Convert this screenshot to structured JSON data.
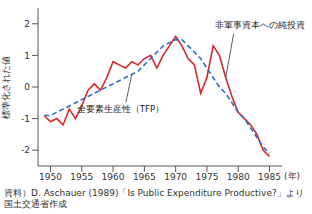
{
  "chart_data": {
    "type": "line",
    "y_label": "標準化された値",
    "x_label": "(年)",
    "source": "資料）D. Aschauer (1989)「Is Public Expenditure Productive?」より国土交通省作成",
    "x": [
      1949,
      1950,
      1951,
      1952,
      1953,
      1954,
      1955,
      1956,
      1957,
      1958,
      1959,
      1960,
      1961,
      1962,
      1963,
      1964,
      1965,
      1966,
      1967,
      1968,
      1969,
      1970,
      1971,
      1972,
      1973,
      1974,
      1975,
      1976,
      1977,
      1978,
      1979,
      1980,
      1981,
      1982,
      1983,
      1984,
      1985
    ],
    "series": [
      {
        "name": "非軍事資本への純投資",
        "color": "#d7262c",
        "line_style": "solid",
        "values": [
          -0.9,
          -1.1,
          -1.0,
          -1.2,
          -0.7,
          -1.0,
          -0.6,
          -0.1,
          0.1,
          -0.1,
          0.3,
          0.8,
          0.7,
          0.6,
          0.8,
          0.7,
          0.9,
          1.0,
          0.6,
          1.0,
          1.3,
          1.6,
          1.3,
          0.9,
          0.7,
          -0.2,
          0.3,
          1.3,
          1.0,
          0.3,
          -0.3,
          -0.8,
          -1.0,
          -1.2,
          -1.5,
          -2.0,
          -2.2
        ]
      },
      {
        "name": "全要素生産性（TFP）",
        "color": "#2f6db5",
        "line_style": "dashed",
        "values": [
          -0.9,
          -0.9,
          -0.8,
          -0.7,
          -0.6,
          -0.5,
          -0.4,
          -0.3,
          -0.2,
          -0.1,
          0.0,
          0.1,
          0.2,
          0.3,
          0.4,
          0.5,
          0.7,
          0.9,
          1.1,
          1.3,
          1.4,
          1.5,
          1.5,
          1.3,
          1.1,
          0.9,
          0.6,
          0.3,
          0.0,
          -0.2,
          -0.5,
          -0.8,
          -1.0,
          -1.3,
          -1.6,
          -1.9,
          -2.1
        ]
      }
    ],
    "xlim": [
      1948,
      1987
    ],
    "xticks": [
      1950,
      1955,
      1960,
      1965,
      1970,
      1975,
      1980,
      1985
    ],
    "ylim": [
      -2.5,
      2.5
    ],
    "yticks": [
      -2,
      -1,
      0,
      1,
      2
    ],
    "grid": false
  }
}
